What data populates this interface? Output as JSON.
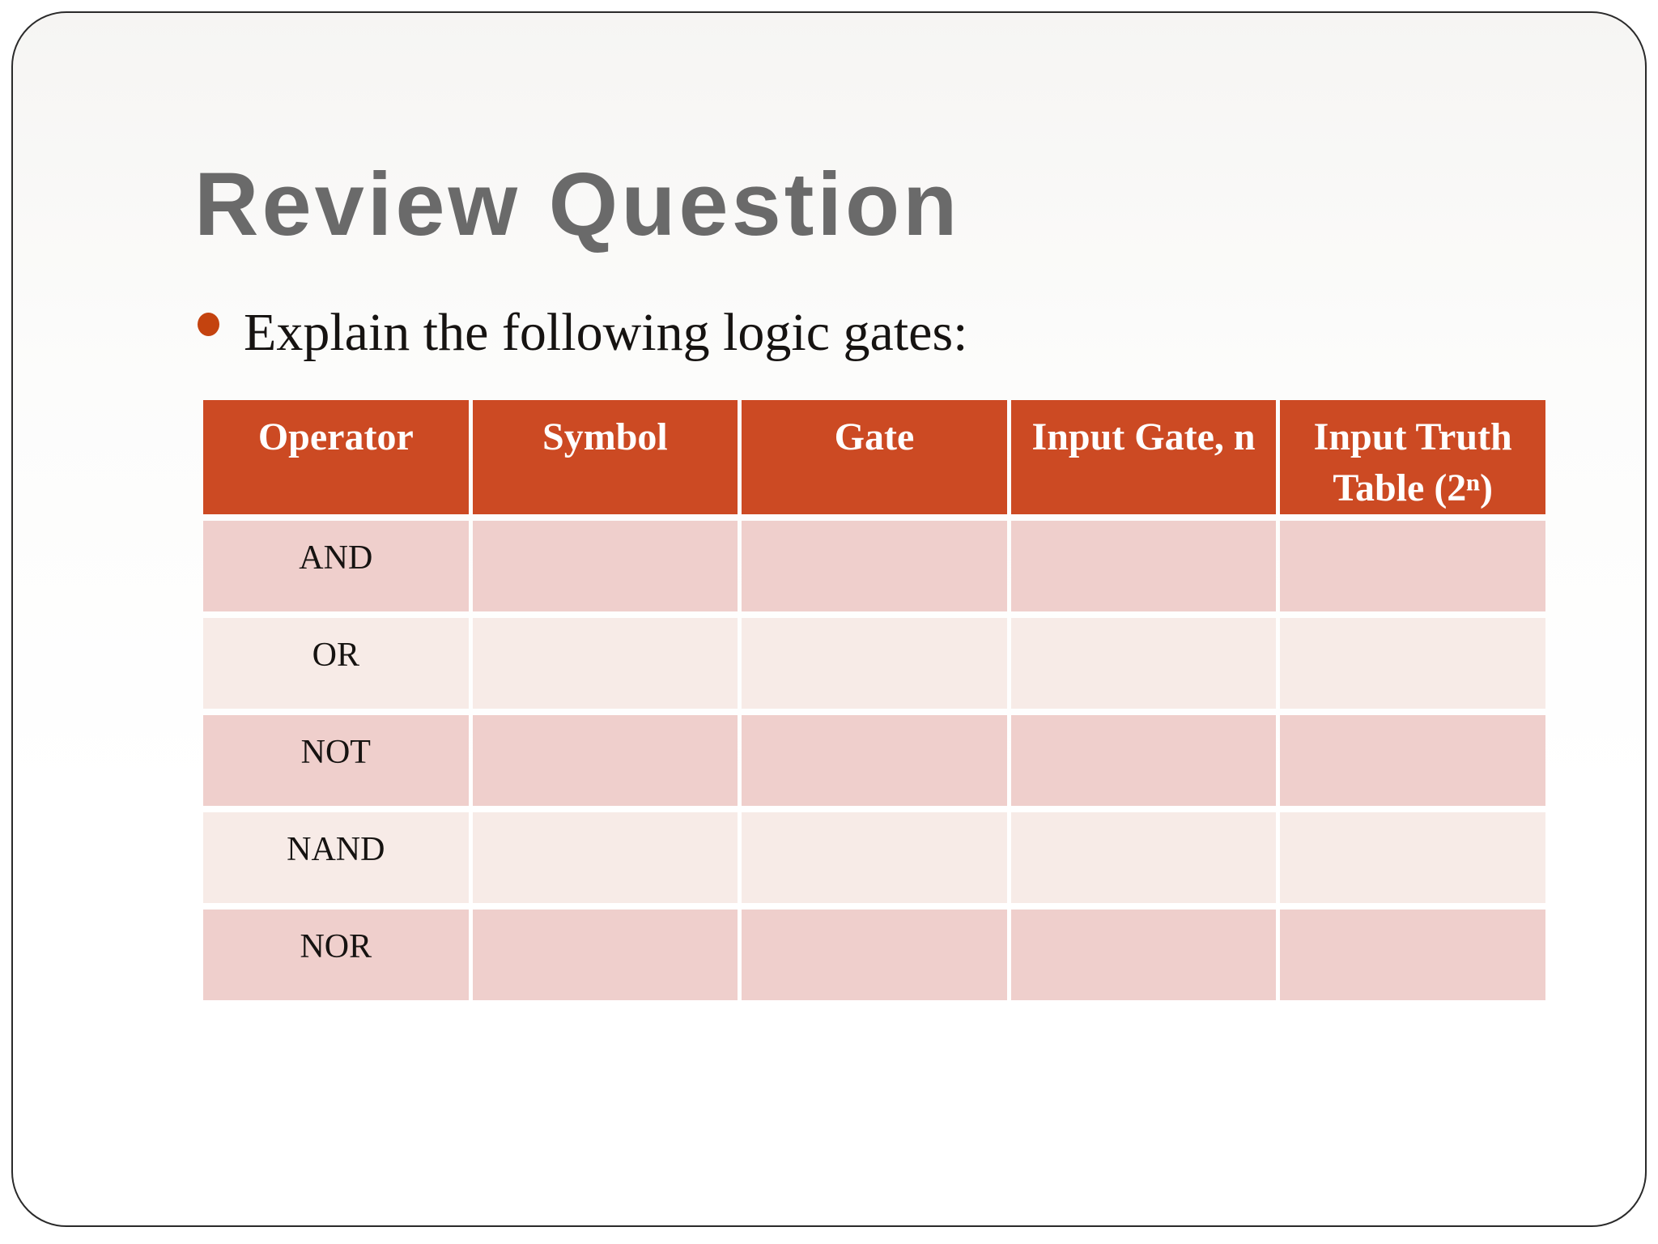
{
  "slide": {
    "title": "Review Question",
    "bullet_text": "Explain the following logic gates:",
    "table": {
      "headers": [
        "Operator",
        "Symbol",
        "Gate",
        "Input Gate, n",
        "Input Truth Table (2ⁿ)"
      ],
      "rows": [
        {
          "operator": "AND",
          "symbol": "",
          "gate": "",
          "input_gate_n": "",
          "input_truth_table": ""
        },
        {
          "operator": "OR",
          "symbol": "",
          "gate": "",
          "input_gate_n": "",
          "input_truth_table": ""
        },
        {
          "operator": "NOT",
          "symbol": "",
          "gate": "",
          "input_gate_n": "",
          "input_truth_table": ""
        },
        {
          "operator": "NAND",
          "symbol": "",
          "gate": "",
          "input_gate_n": "",
          "input_truth_table": ""
        },
        {
          "operator": "NOR",
          "symbol": "",
          "gate": "",
          "input_gate_n": "",
          "input_truth_table": ""
        }
      ]
    },
    "colors": {
      "header_bg": "#cc4a23",
      "row_dark": "#efcfcc",
      "row_light": "#f7ebe7",
      "title_text": "#6a6a6a",
      "bullet_dot": "#c4430f",
      "header_text": "#ffffff",
      "body_text": "#161311",
      "frame_border": "#2a2a2a"
    }
  }
}
